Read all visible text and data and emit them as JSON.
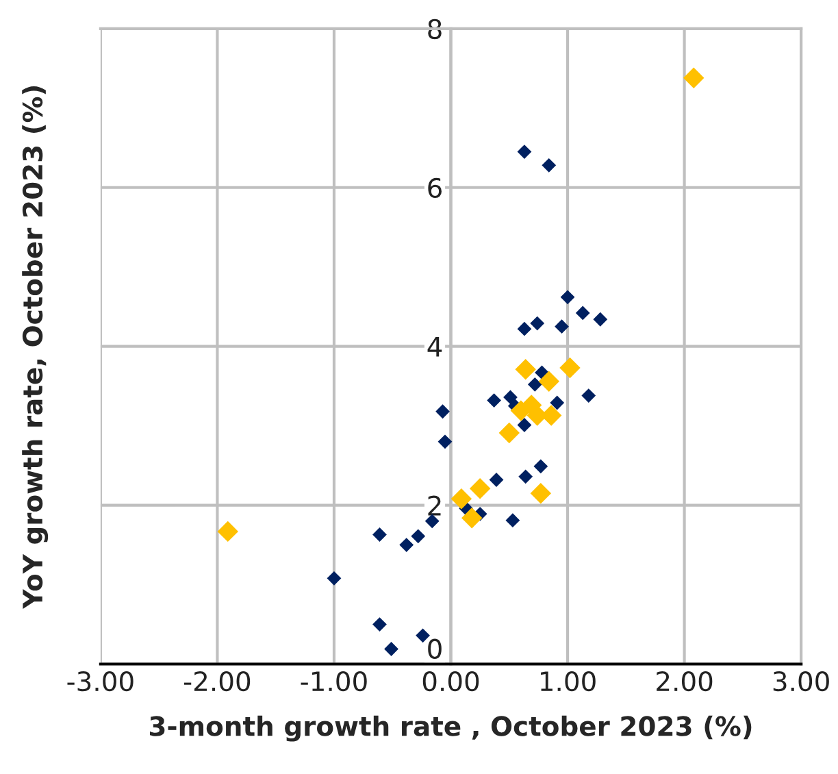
{
  "chart_data": {
    "type": "scatter",
    "xlabel": "3-month growth rate , October 2023 (%)",
    "ylabel": "YoY growth rate, October 2023 (%)",
    "xlim": [
      -3,
      3
    ],
    "xticks": [
      {
        "value": -3,
        "label": "-3.00"
      },
      {
        "value": -2,
        "label": "-2.00"
      },
      {
        "value": -1,
        "label": "-1.00"
      },
      {
        "value": 0,
        "label": "0.00"
      },
      {
        "value": 1,
        "label": "1.00"
      },
      {
        "value": 2,
        "label": "2.00"
      },
      {
        "value": 3,
        "label": "3.00"
      }
    ],
    "ylim": [
      0,
      8
    ],
    "yticks": [
      0,
      2,
      4,
      6,
      8
    ],
    "grid": true,
    "marker": "diamond",
    "series": [
      {
        "color": "#002060",
        "x": [
          0.63,
          0.84,
          1.0,
          1.13,
          1.28,
          0.63,
          0.74,
          0.95,
          0.78,
          0.72,
          0.37,
          0.51,
          0.55,
          0.91,
          1.18,
          -0.07,
          -0.05,
          0.63,
          0.77,
          0.64,
          0.39,
          0.13,
          0.25,
          0.53,
          -0.16,
          -0.61,
          -0.28,
          -0.38,
          -1.0,
          -0.61,
          -0.51,
          -0.24
        ],
        "values": [
          6.45,
          6.28,
          4.62,
          4.42,
          4.34,
          4.22,
          4.29,
          4.25,
          3.67,
          3.52,
          3.32,
          3.36,
          3.25,
          3.29,
          3.38,
          3.18,
          2.8,
          3.01,
          2.49,
          2.36,
          2.32,
          1.96,
          1.89,
          1.81,
          1.8,
          1.63,
          1.61,
          1.5,
          1.08,
          0.5,
          0.19,
          0.36
        ]
      },
      {
        "color": "#ffc000",
        "x": [
          2.08,
          -1.91,
          0.64,
          1.02,
          0.84,
          0.6,
          0.69,
          0.74,
          0.86,
          0.5,
          0.77,
          0.09,
          0.25,
          0.18
        ],
        "values": [
          7.38,
          1.67,
          3.71,
          3.73,
          3.56,
          3.19,
          3.26,
          3.13,
          3.13,
          2.91,
          2.15,
          2.08,
          2.21,
          1.84
        ]
      }
    ]
  }
}
